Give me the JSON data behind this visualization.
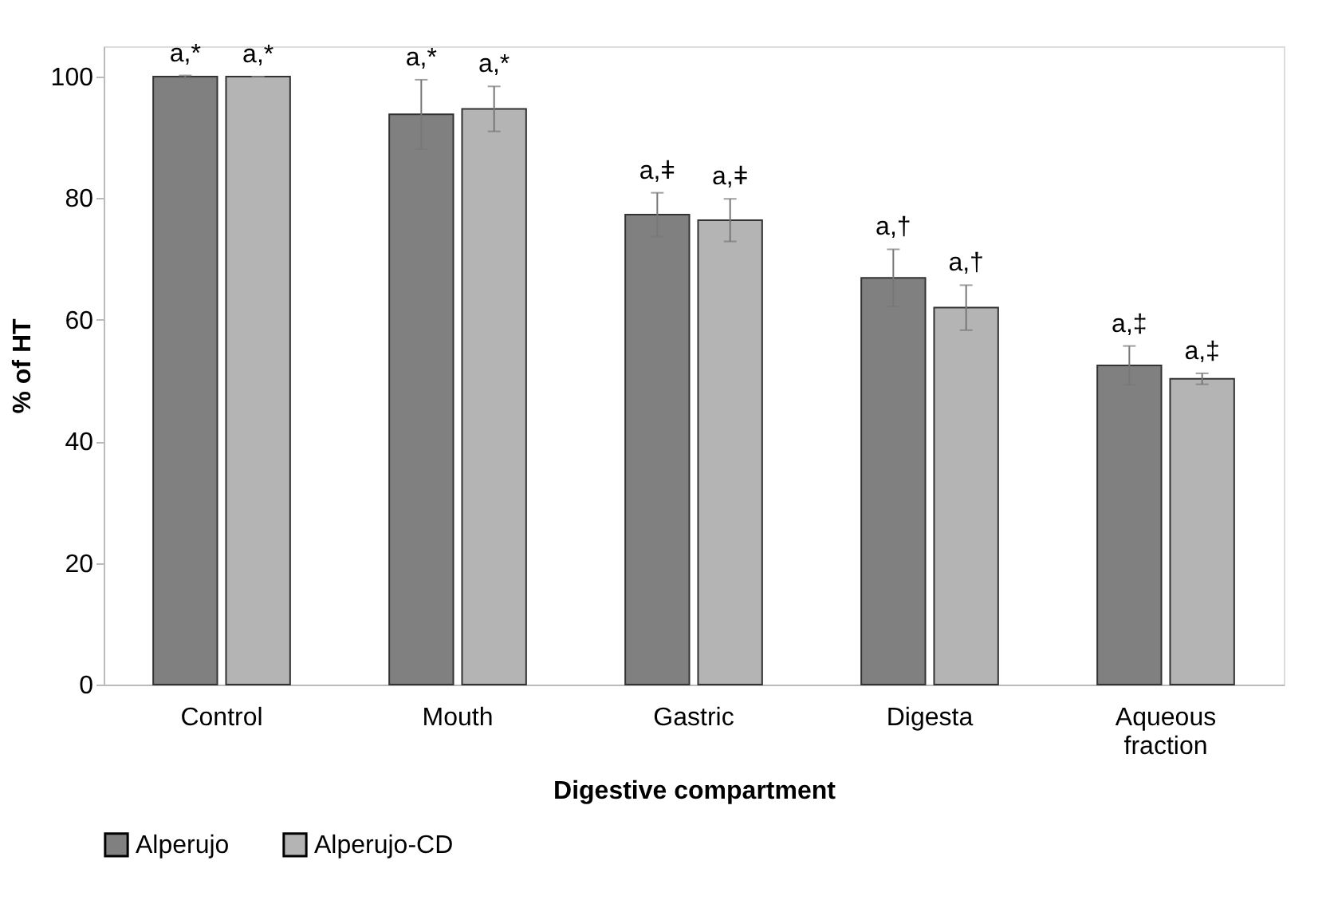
{
  "chart_data": {
    "type": "bar",
    "xlabel": "Digestive compartment",
    "ylabel": "% of HT",
    "categories": [
      "Control",
      "Mouth",
      "Gastric",
      "Digesta",
      "Aqueous\nfraction"
    ],
    "series": [
      {
        "name": "Alperujo",
        "color": "#808080",
        "values": [
          100,
          93.8,
          77.3,
          66.9,
          52.5
        ],
        "errors": [
          0.2,
          5.7,
          3.6,
          4.7,
          3.2
        ],
        "value_labels": [
          "a,*",
          "a,*",
          "a,ǂ",
          "a,†",
          "a,‡"
        ]
      },
      {
        "name": "Alperujo-CD",
        "color": "#b4b4b4",
        "values": [
          100,
          94.7,
          76.4,
          62.0,
          50.3
        ],
        "errors": [
          0,
          3.7,
          3.5,
          3.7,
          0.9
        ],
        "value_labels": [
          "a,*",
          "a,*",
          "a,ǂ",
          "a,†",
          "a,‡"
        ]
      }
    ],
    "ylim": [
      0,
      105
    ],
    "yticks": [
      0,
      20,
      40,
      60,
      80,
      100
    ],
    "grid": false,
    "legend": "bottom"
  }
}
